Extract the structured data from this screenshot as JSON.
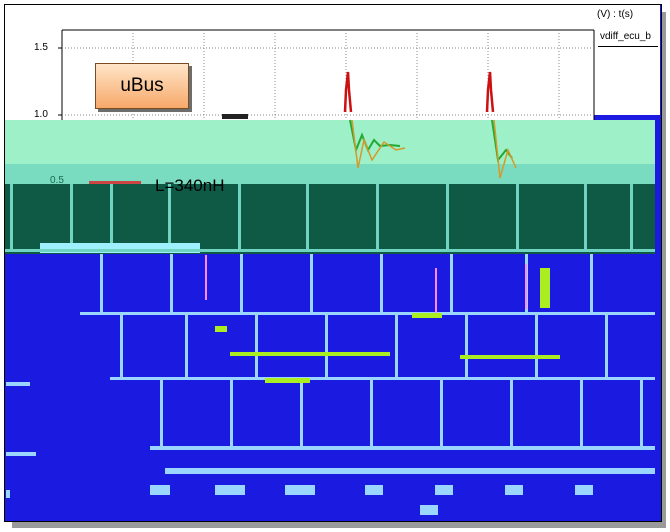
{
  "chart_data": {
    "type": "line",
    "units_label": "(V) : t(s)",
    "series": [
      {
        "name": "vdiff_ecu_b"
      }
    ],
    "y_ticks": [
      "1.5",
      "1.0",
      "0.5"
    ],
    "ylim": [
      0.3,
      1.65
    ],
    "grid": true,
    "annotations": [
      "uBus",
      "L=340nH"
    ],
    "legend_placement": "top-right"
  },
  "colors": {
    "frame_blue": "#1a1ae0",
    "teal_dark": "#0f5a44",
    "mint": "#9ef0c8",
    "trace_red": "#cc1111",
    "trace_green": "#22aa33",
    "trace_orange": "#d49a2a"
  }
}
